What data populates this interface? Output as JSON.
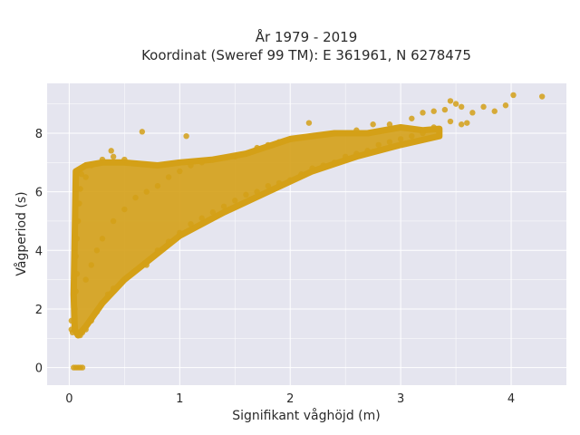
{
  "chart_data": {
    "type": "scatter",
    "title_line1": "År 1979 - 2019",
    "title_line2": "Koordinat (Sweref 99 TM): E 361961, N 6278475",
    "xlabel": "Signifikant våghöjd (m)",
    "ylabel": "Vågperiod (s)",
    "xlim": [
      -0.2,
      4.5
    ],
    "ylim": [
      -0.6,
      9.7
    ],
    "x_ticks": [
      0,
      1,
      2,
      3,
      4
    ],
    "y_ticks": [
      0,
      2,
      4,
      6,
      8
    ],
    "x_tick_labels": [
      "0",
      "1",
      "2",
      "3",
      "4"
    ],
    "y_tick_labels": [
      "0",
      "2",
      "4",
      "6",
      "8"
    ],
    "grid": true,
    "colors": {
      "marker": "#d4a017",
      "plot_bg": "#e5e5ef",
      "grid": "#ffffff"
    },
    "series": [
      {
        "points": [
          [
            0.04,
            0.0
          ],
          [
            0.06,
            0.0
          ],
          [
            0.08,
            0.0
          ],
          [
            0.1,
            0.0
          ],
          [
            0.12,
            0.0
          ],
          [
            0.02,
            1.3
          ],
          [
            0.02,
            1.6
          ],
          [
            0.03,
            1.2
          ],
          [
            0.05,
            1.4
          ],
          [
            0.07,
            1.15
          ],
          [
            0.1,
            1.1
          ],
          [
            0.12,
            1.2
          ],
          [
            0.05,
            2.0
          ],
          [
            0.06,
            2.6
          ],
          [
            0.07,
            3.2
          ],
          [
            0.06,
            3.8
          ],
          [
            0.07,
            4.4
          ],
          [
            0.08,
            5.0
          ],
          [
            0.09,
            5.6
          ],
          [
            0.1,
            6.1
          ],
          [
            0.11,
            6.6
          ],
          [
            0.15,
            1.3
          ],
          [
            0.2,
            1.6
          ],
          [
            0.25,
            1.9
          ],
          [
            0.3,
            2.2
          ],
          [
            0.35,
            2.5
          ],
          [
            0.4,
            2.7
          ],
          [
            0.5,
            3.0
          ],
          [
            0.6,
            3.3
          ],
          [
            0.7,
            3.5
          ],
          [
            0.15,
            3.0
          ],
          [
            0.2,
            3.5
          ],
          [
            0.25,
            4.0
          ],
          [
            0.3,
            4.4
          ],
          [
            0.4,
            5.0
          ],
          [
            0.5,
            5.4
          ],
          [
            0.6,
            5.8
          ],
          [
            0.7,
            6.0
          ],
          [
            0.15,
            6.5
          ],
          [
            0.2,
            6.9
          ],
          [
            0.3,
            7.1
          ],
          [
            0.4,
            7.2
          ],
          [
            0.5,
            7.1
          ],
          [
            0.38,
            7.4
          ],
          [
            0.66,
            8.05
          ],
          [
            0.8,
            4.0
          ],
          [
            0.9,
            4.3
          ],
          [
            1.0,
            4.6
          ],
          [
            1.1,
            4.9
          ],
          [
            1.2,
            5.1
          ],
          [
            1.3,
            5.3
          ],
          [
            1.4,
            5.5
          ],
          [
            0.8,
            6.2
          ],
          [
            0.9,
            6.5
          ],
          [
            1.0,
            6.7
          ],
          [
            1.1,
            6.9
          ],
          [
            1.2,
            7.0
          ],
          [
            1.3,
            7.1
          ],
          [
            1.06,
            7.9
          ],
          [
            1.5,
            5.7
          ],
          [
            1.6,
            5.9
          ],
          [
            1.7,
            6.0
          ],
          [
            1.8,
            6.2
          ],
          [
            1.9,
            6.3
          ],
          [
            2.0,
            6.4
          ],
          [
            1.5,
            7.2
          ],
          [
            1.6,
            7.3
          ],
          [
            1.7,
            7.5
          ],
          [
            1.8,
            7.6
          ],
          [
            1.9,
            7.7
          ],
          [
            2.0,
            7.8
          ],
          [
            2.17,
            8.35
          ],
          [
            2.1,
            6.6
          ],
          [
            2.2,
            6.8
          ],
          [
            2.3,
            6.9
          ],
          [
            2.4,
            7.0
          ],
          [
            2.5,
            7.2
          ],
          [
            2.6,
            7.3
          ],
          [
            2.2,
            7.9
          ],
          [
            2.4,
            8.0
          ],
          [
            2.6,
            8.1
          ],
          [
            2.7,
            7.4
          ],
          [
            2.8,
            7.6
          ],
          [
            2.9,
            7.7
          ],
          [
            3.0,
            7.8
          ],
          [
            3.1,
            7.9
          ],
          [
            3.2,
            8.0
          ],
          [
            2.75,
            8.3
          ],
          [
            2.9,
            8.3
          ],
          [
            3.1,
            8.5
          ],
          [
            3.2,
            8.7
          ],
          [
            3.3,
            8.75
          ],
          [
            3.4,
            8.8
          ],
          [
            3.3,
            8.2
          ],
          [
            3.45,
            8.4
          ],
          [
            3.55,
            8.9
          ],
          [
            3.65,
            8.7
          ],
          [
            3.75,
            8.9
          ],
          [
            3.85,
            8.75
          ],
          [
            3.55,
            8.3
          ],
          [
            3.6,
            8.35
          ],
          [
            3.5,
            9.0
          ],
          [
            3.45,
            9.1
          ],
          [
            3.95,
            8.95
          ],
          [
            4.02,
            9.3
          ],
          [
            4.28,
            9.25
          ]
        ]
      }
    ]
  }
}
